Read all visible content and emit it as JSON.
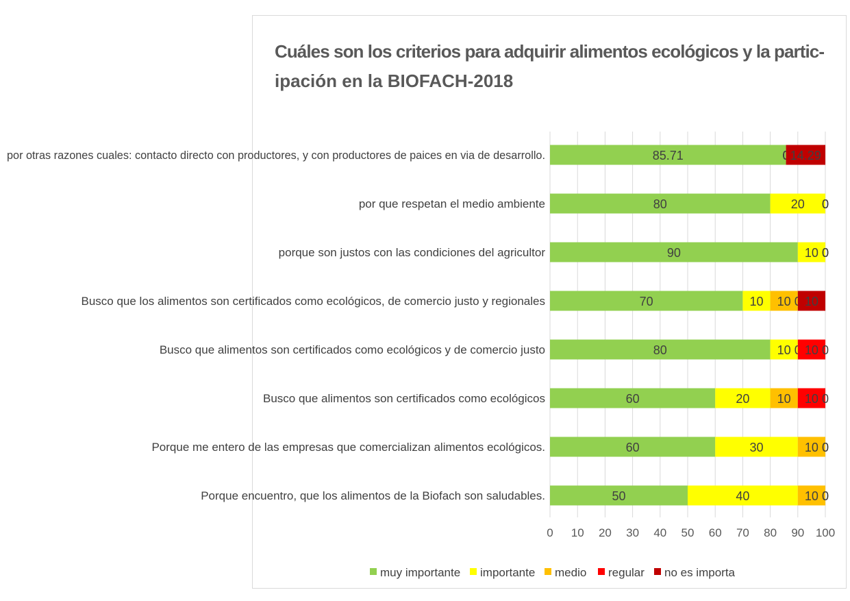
{
  "chart_data": {
    "type": "bar",
    "orientation": "horizontal",
    "stacked": true,
    "title_lines": [
      "Cuáles son los criterios para adquirir alimentos ecológicos y la partic-",
      "ipación en la BIOFACH-2018"
    ],
    "categories": [
      "por otras razones  cuales: contacto directo con productores, y con productores de paices en via de desarrollo.",
      "por que respetan el medio ambiente",
      "porque son justos con las condiciones del agricultor",
      "Busco que los alimentos son certificados como ecológicos, de comercio justo  y regionales",
      "Busco que alimentos son certificados como ecológicos y de comercio justo",
      "Busco que alimentos son certificados como ecológicos",
      "Porque me entero de las  empresas que comercializan alimentos ecológicos.",
      "Porque encuentro, que  los alimentos de la Biofach son saludables."
    ],
    "series": [
      {
        "name": "muy importante",
        "color": "#92d050",
        "values": [
          85.71,
          80,
          90,
          70,
          80,
          60,
          60,
          50
        ],
        "labels": [
          "85.71",
          "80",
          "90",
          "70",
          "80",
          "60",
          "60",
          "50"
        ]
      },
      {
        "name": "importante",
        "color": "#ffff00",
        "values": [
          0,
          20,
          10,
          10,
          10,
          20,
          30,
          40
        ],
        "labels": [
          "0",
          "20",
          "10",
          "10",
          "10",
          "20",
          "30",
          "40"
        ]
      },
      {
        "name": "medio",
        "color": "#ffc000",
        "values": [
          0,
          0,
          0,
          10,
          0,
          10,
          10,
          10
        ],
        "labels": [
          "0",
          "0",
          "0",
          "10",
          "0",
          "10",
          "10",
          "10"
        ]
      },
      {
        "name": "regular",
        "color": "#ff0000",
        "values": [
          0,
          0,
          0,
          0,
          10,
          10,
          0,
          0
        ],
        "labels": [
          "0",
          "0",
          "0",
          "0",
          "10",
          "10",
          "0",
          "0"
        ]
      },
      {
        "name": "no es importa",
        "color": "#c00000",
        "values": [
          14.29,
          0,
          0,
          10,
          0,
          0,
          0,
          0
        ],
        "labels": [
          "14.29",
          "0",
          "0",
          "10",
          "0",
          "0",
          "0",
          "0"
        ]
      }
    ],
    "xlim": [
      0,
      100
    ],
    "xticks": [
      "0",
      "10",
      "20",
      "30",
      "40",
      "50",
      "60",
      "70",
      "80",
      "90",
      "100"
    ],
    "grid": true,
    "legend_position": "bottom"
  }
}
